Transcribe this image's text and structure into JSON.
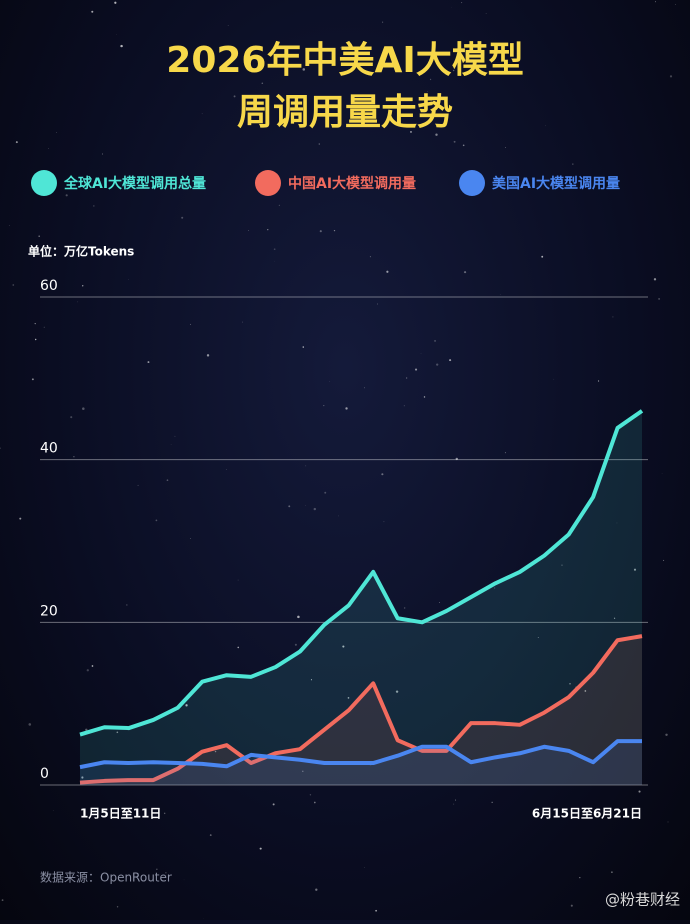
{
  "chart_data": {
    "type": "line",
    "title": "2026年中美AI大模型",
    "subtitle": "周调用量走势",
    "y_label": "单位：万亿Tokens",
    "source": "数据来源：OpenRouter",
    "watermark": "@粉巷财经",
    "categories": [
      "1月5日至11日",
      null,
      null,
      null,
      null,
      null,
      null,
      null,
      null,
      null,
      null,
      null,
      null,
      null,
      null,
      null,
      null,
      null,
      null,
      null,
      null,
      null,
      null,
      "6月15日至6月21日"
    ],
    "series": [
      {
        "name": "全球AI大模型调用总量",
        "color": "#4fe6d6",
        "values": [
          6.2,
          7.1,
          7.0,
          8.0,
          9.5,
          12.7,
          13.5,
          13.3,
          14.5,
          16.4,
          19.7,
          22.1,
          26.2,
          20.5,
          20.0,
          21.4,
          23.1,
          24.8,
          26.2,
          28.2,
          30.8,
          35.4,
          43.9,
          46.0
        ]
      },
      {
        "name": "中国AI大模型调用量",
        "color": "#f26b5e",
        "values": [
          0.3,
          0.5,
          0.6,
          0.6,
          2.0,
          4.1,
          4.9,
          2.7,
          3.9,
          4.4,
          6.8,
          9.2,
          12.5,
          5.5,
          4.2,
          4.2,
          7.6,
          7.6,
          7.4,
          8.9,
          10.8,
          13.8,
          17.8,
          18.3
        ]
      },
      {
        "name": "美国AI大模型调用量",
        "color": "#4a86f0",
        "values": [
          2.2,
          2.8,
          2.7,
          2.8,
          2.7,
          2.6,
          2.3,
          3.7,
          3.4,
          3.1,
          2.7,
          2.7,
          2.7,
          3.6,
          4.7,
          4.7,
          2.8,
          3.4,
          3.9,
          4.7,
          4.2,
          2.8,
          5.4,
          5.4
        ]
      }
    ],
    "ylim": [
      0,
      60
    ],
    "yticks": [
      0,
      20,
      40,
      60
    ],
    "grid": true
  }
}
